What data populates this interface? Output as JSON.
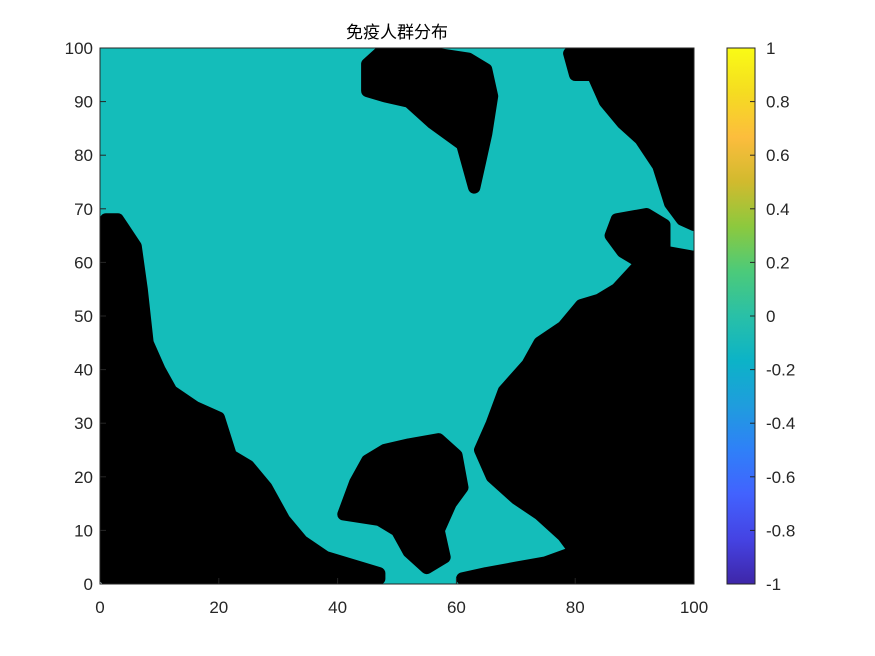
{
  "chart_data": {
    "type": "scatter",
    "title": "免疫人群分布",
    "xlabel": "",
    "ylabel": "",
    "xlim": [
      0,
      100
    ],
    "ylim": [
      0,
      100
    ],
    "x_ticks": [
      "0",
      "20",
      "40",
      "60",
      "80",
      "100"
    ],
    "y_ticks": [
      "0",
      "10",
      "20",
      "30",
      "40",
      "50",
      "60",
      "70",
      "80",
      "90",
      "100"
    ],
    "grid": false,
    "legend": "none",
    "grid_extent": {
      "x": [
        1,
        100
      ],
      "y": [
        1,
        100
      ]
    },
    "background_value": 0,
    "background_color": "#14bdba",
    "marker_color": "#000000",
    "immune_regions": [
      {
        "name": "left-lower",
        "polygon": [
          [
            1,
            1
          ],
          [
            1,
            68
          ],
          [
            3,
            68
          ],
          [
            6,
            63
          ],
          [
            7,
            55
          ],
          [
            8,
            45
          ],
          [
            10,
            40
          ],
          [
            12,
            36
          ],
          [
            16,
            33
          ],
          [
            20,
            31
          ],
          [
            22,
            24
          ],
          [
            25,
            22
          ],
          [
            28,
            18
          ],
          [
            31,
            12
          ],
          [
            34,
            8
          ],
          [
            38,
            5
          ],
          [
            44,
            3
          ],
          [
            47,
            2
          ],
          [
            47,
            1
          ]
        ]
      },
      {
        "name": "top-center",
        "polygon": [
          [
            45,
            97
          ],
          [
            47,
            99
          ],
          [
            56,
            99
          ],
          [
            62,
            98
          ],
          [
            65,
            96
          ],
          [
            66,
            91
          ],
          [
            65,
            84
          ],
          [
            64,
            79
          ],
          [
            63,
            74
          ],
          [
            61,
            82
          ],
          [
            56,
            86
          ],
          [
            52,
            90
          ],
          [
            48,
            91
          ],
          [
            45,
            92
          ]
        ]
      },
      {
        "name": "bottom-center",
        "polygon": [
          [
            41,
            13
          ],
          [
            43,
            19
          ],
          [
            45,
            23
          ],
          [
            48,
            25
          ],
          [
            52,
            26
          ],
          [
            57,
            27
          ],
          [
            60,
            24
          ],
          [
            61,
            18
          ],
          [
            59,
            15
          ],
          [
            57,
            10
          ],
          [
            58,
            5
          ],
          [
            55,
            3
          ],
          [
            52,
            6
          ],
          [
            50,
            10
          ],
          [
            47,
            12
          ]
        ]
      },
      {
        "name": "right-main",
        "polygon": [
          [
            61,
            1
          ],
          [
            100,
            1
          ],
          [
            100,
            61
          ],
          [
            95,
            62
          ],
          [
            92,
            61
          ],
          [
            87,
            55
          ],
          [
            84,
            53
          ],
          [
            81,
            52
          ],
          [
            78,
            48
          ],
          [
            74,
            45
          ],
          [
            72,
            41
          ],
          [
            68,
            36
          ],
          [
            66,
            30
          ],
          [
            64,
            25
          ],
          [
            66,
            20
          ],
          [
            70,
            16
          ],
          [
            74,
            13
          ],
          [
            78,
            9
          ],
          [
            80,
            6
          ],
          [
            75,
            4
          ],
          [
            70,
            3
          ],
          [
            65,
            2
          ]
        ]
      },
      {
        "name": "top-right",
        "polygon": [
          [
            79,
            99
          ],
          [
            100,
            99
          ],
          [
            100,
            67
          ],
          [
            98,
            68
          ],
          [
            96,
            71
          ],
          [
            94,
            78
          ],
          [
            91,
            83
          ],
          [
            88,
            86
          ],
          [
            85,
            90
          ],
          [
            83,
            95
          ],
          [
            80,
            95
          ]
        ]
      },
      {
        "name": "mid-right-island",
        "polygon": [
          [
            87,
            68
          ],
          [
            92,
            69
          ],
          [
            95,
            67
          ],
          [
            95,
            62
          ],
          [
            91,
            60
          ],
          [
            88,
            62
          ],
          [
            86,
            65
          ]
        ]
      }
    ],
    "colorbar": {
      "min": -1,
      "max": 1,
      "ticks": [
        "1",
        "0.8",
        "0.6",
        "0.4",
        "0.2",
        "0",
        "-0.2",
        "-0.4",
        "-0.6",
        "-0.8",
        "-1"
      ],
      "colormap": [
        "#3e26a8",
        "#4543e3",
        "#4262fe",
        "#2f80f8",
        "#1f9ddd",
        "#0cb3c7",
        "#29c0a7",
        "#4cca7a",
        "#8cc93e",
        "#d1ba2e",
        "#fcbd3d",
        "#f5dc21",
        "#f9fb15"
      ]
    }
  }
}
